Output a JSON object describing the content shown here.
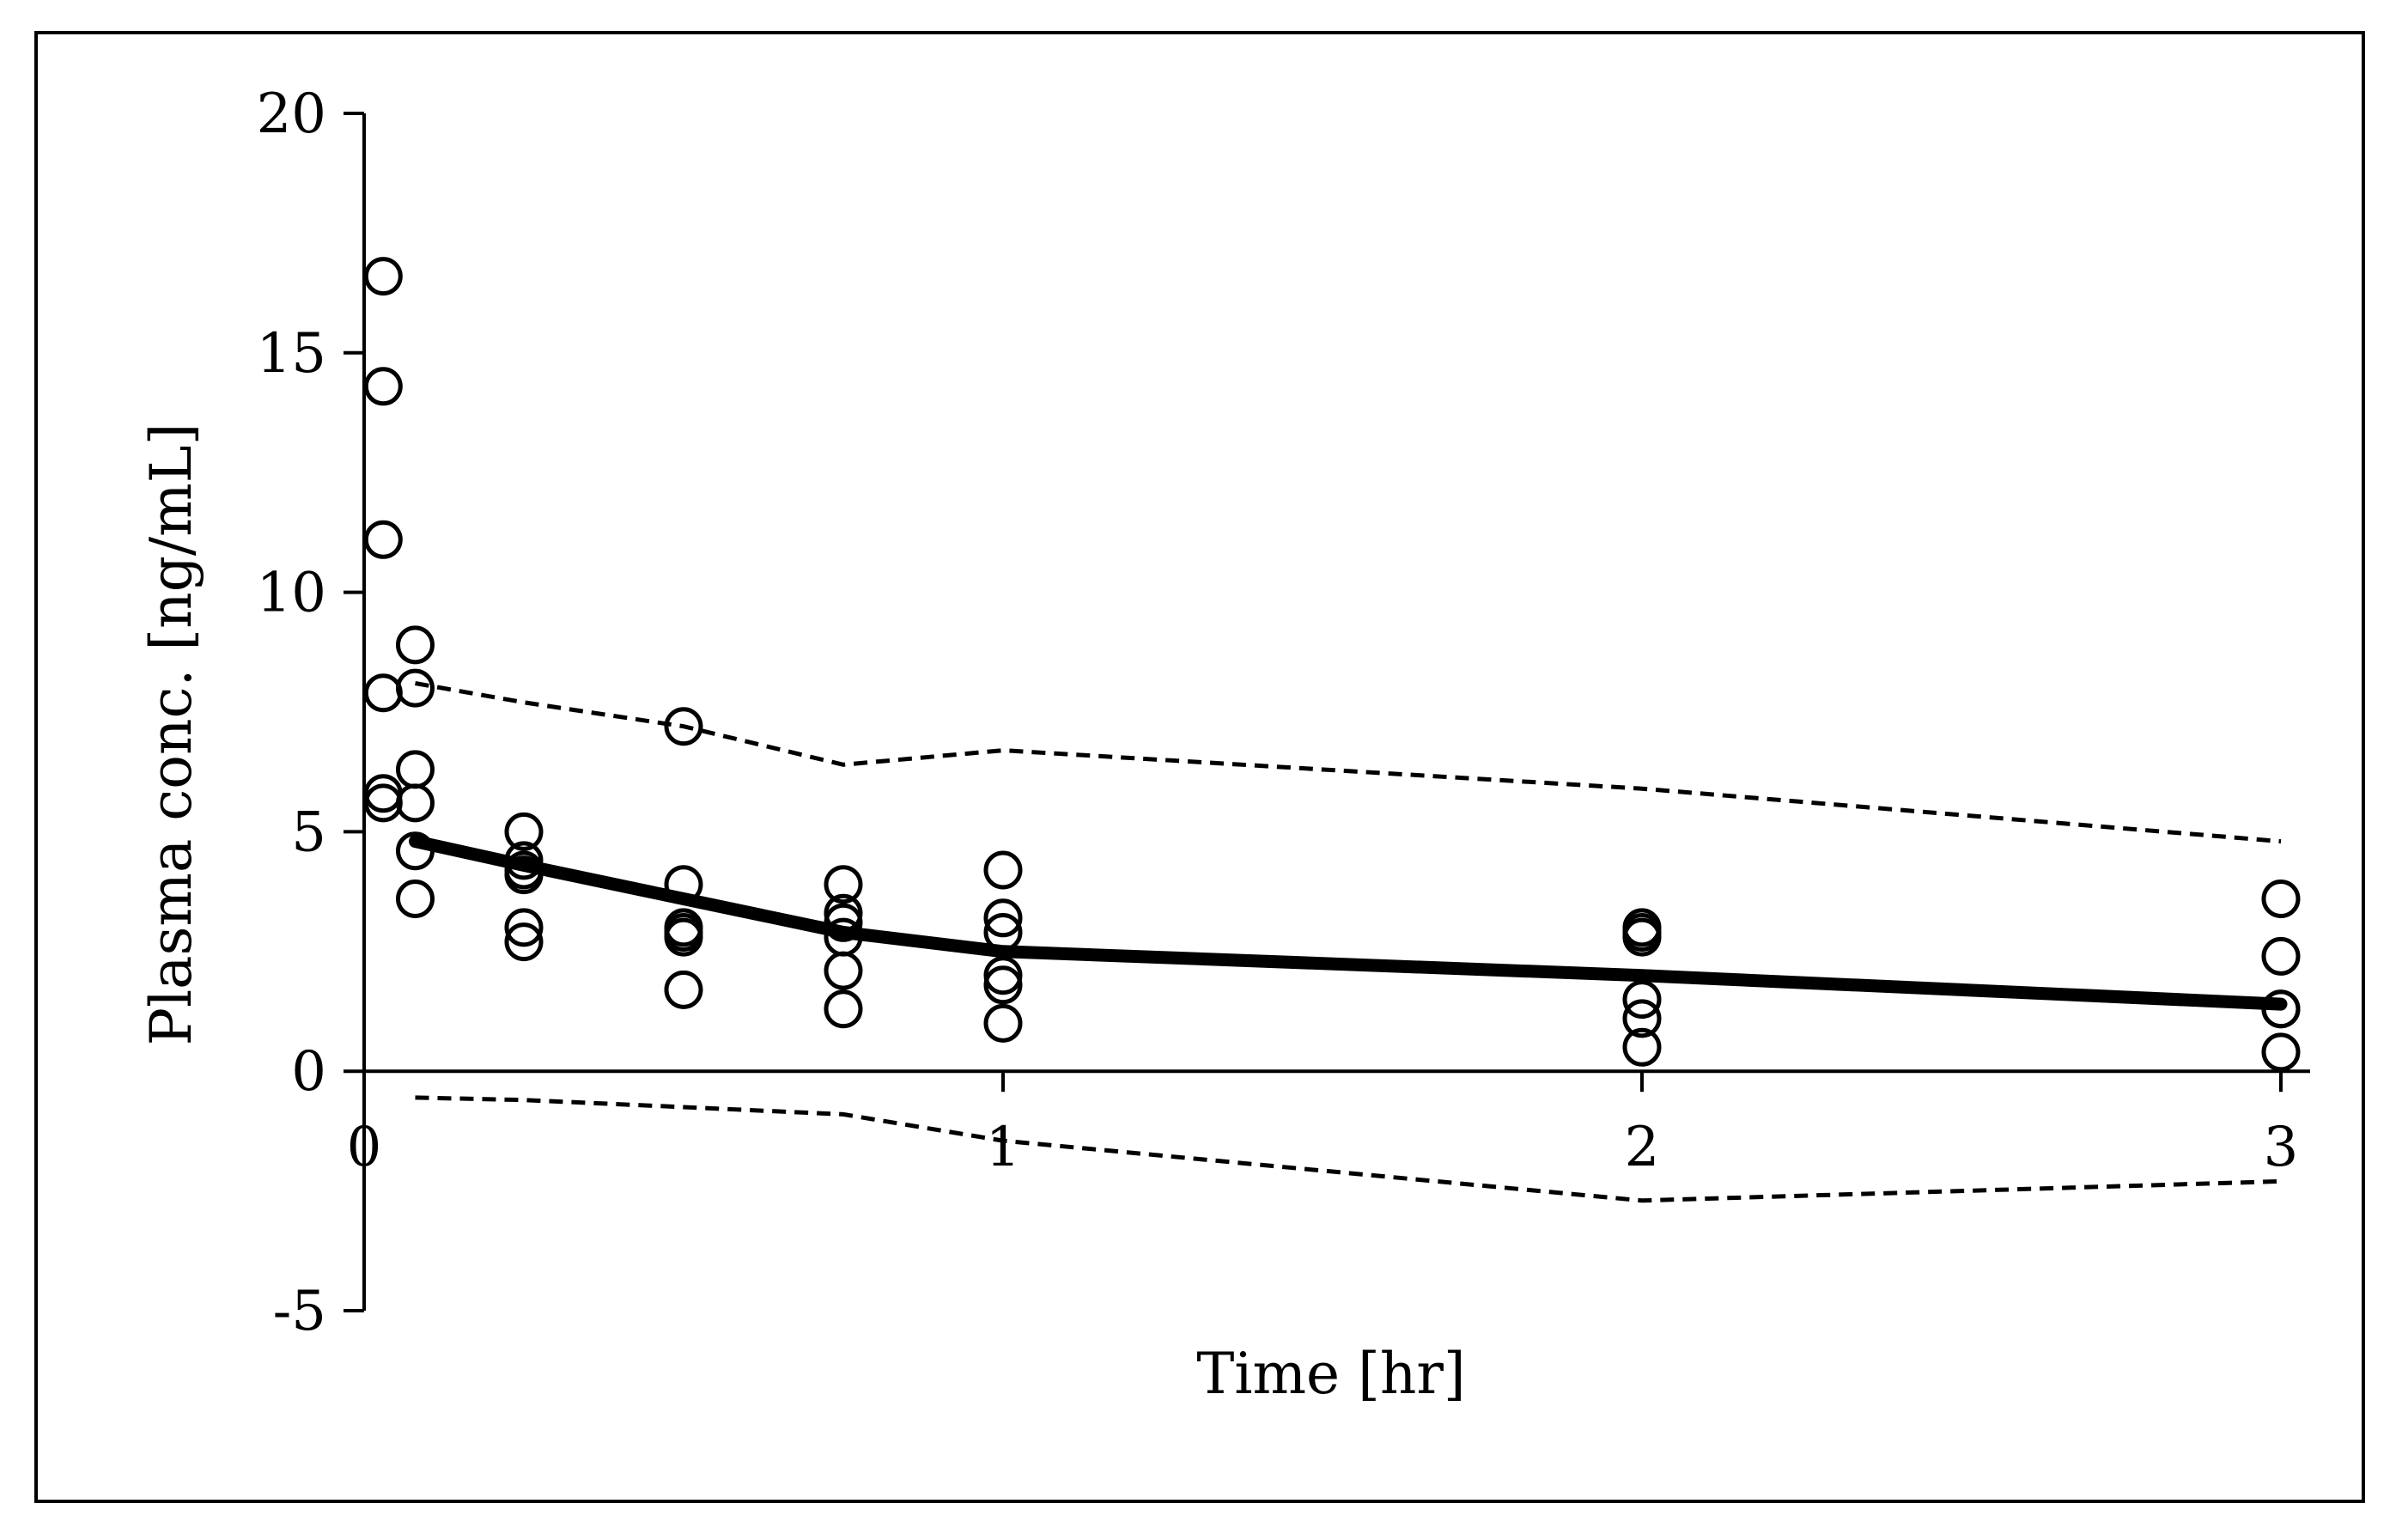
{
  "chart_data": {
    "type": "scatter",
    "xlabel": "Time [hr]",
    "ylabel": "Plasma conc. [ng/mL]",
    "xlim": [
      0,
      3
    ],
    "ylim": [
      -5,
      20
    ],
    "x_ticks": [
      0,
      1,
      2,
      3
    ],
    "y_ticks": [
      -5,
      0,
      5,
      10,
      15,
      20
    ],
    "x_tick_labels": [
      "0",
      "1",
      "2",
      "3"
    ],
    "y_tick_labels": [
      "-5",
      "0",
      "5",
      "10",
      "15",
      "20"
    ],
    "grid": false,
    "legend": "none",
    "colors": {
      "ink": "#000000",
      "background": "#ffffff"
    },
    "series": [
      {
        "kind": "observed",
        "marker": "open-circle",
        "x": [
          0.03,
          0.03,
          0.03,
          0.03,
          0.03,
          0.03,
          0.08,
          0.08,
          0.08,
          0.08,
          0.08,
          0.08,
          0.25,
          0.25,
          0.25,
          0.25,
          0.25,
          0.25,
          0.5,
          0.5,
          0.5,
          0.5,
          0.5,
          0.5,
          0.75,
          0.75,
          0.75,
          0.75,
          0.75,
          0.75,
          1,
          1,
          1,
          1,
          1,
          1,
          2,
          2,
          2,
          2,
          2,
          2,
          3,
          3,
          3,
          3,
          3
        ],
        "y": [
          16.6,
          14.3,
          11.1,
          7.9,
          5.8,
          5.6,
          8.9,
          8.0,
          6.3,
          5.6,
          4.6,
          3.6,
          5.0,
          4.4,
          4.2,
          4.1,
          3.0,
          2.7,
          7.2,
          3.9,
          3.0,
          2.9,
          2.8,
          1.7,
          3.9,
          3.3,
          3.1,
          2.8,
          2.1,
          1.3,
          4.2,
          3.2,
          2.9,
          2.0,
          1.8,
          1.0,
          3.0,
          2.9,
          2.8,
          1.5,
          1.1,
          0.5,
          3.6,
          2.4,
          1.3,
          1.3,
          0.4
        ]
      },
      {
        "kind": "median",
        "style": "solid-thick",
        "x": [
          0.08,
          0.25,
          0.5,
          0.75,
          1,
          2,
          3
        ],
        "y": [
          4.8,
          4.3,
          3.6,
          2.9,
          2.5,
          2.0,
          1.4
        ]
      },
      {
        "kind": "upper-bound",
        "style": "dashed",
        "x": [
          0.08,
          0.25,
          0.5,
          0.75,
          1,
          2,
          3
        ],
        "y": [
          8.1,
          7.7,
          7.2,
          6.4,
          6.7,
          5.9,
          4.8
        ]
      },
      {
        "kind": "lower-bound",
        "style": "dashed",
        "x": [
          0.08,
          0.25,
          0.5,
          0.75,
          1,
          2,
          3
        ],
        "y": [
          -0.55,
          -0.6,
          -0.75,
          -0.9,
          -1.45,
          -2.7,
          -2.3
        ]
      }
    ]
  }
}
